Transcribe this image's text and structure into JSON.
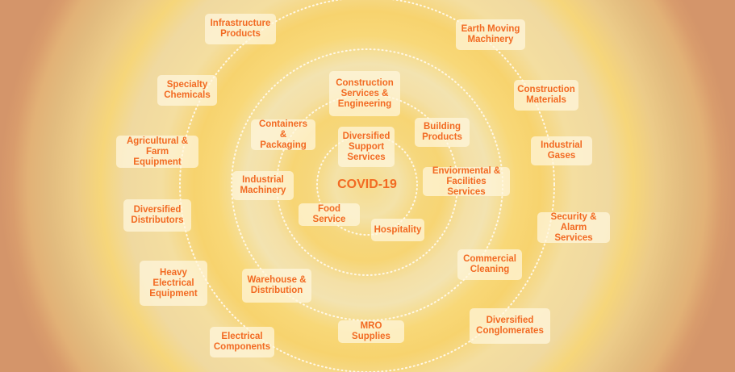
{
  "center_label": "COVID-19",
  "colors": {
    "text": "#f26a22",
    "background": "#d4976b",
    "ring_gold": "#f7d574",
    "ring_light": "#f4e2a8"
  },
  "nodes": [
    {
      "label": "Infrastructure\nProducts"
    },
    {
      "label": "Earth Moving\nMachinery"
    },
    {
      "label": "Specialty\nChemicals"
    },
    {
      "label": "Construction\nMaterials"
    },
    {
      "label": "Construction\nServices &\nEngineering"
    },
    {
      "label": "Containers &\nPackaging"
    },
    {
      "label": "Building\nProducts"
    },
    {
      "label": "Diversified\nSupport\nServices"
    },
    {
      "label": "Agricultural &\nFarm Equipment"
    },
    {
      "label": "Industrial\nGases"
    },
    {
      "label": "Enviormental &\nFacilities Services"
    },
    {
      "label": "Industrial\nMachinery"
    },
    {
      "label": "Diversified\nDistributors"
    },
    {
      "label": "Security &\nAlarm Services"
    },
    {
      "label": "Food Service"
    },
    {
      "label": "Hospitality"
    },
    {
      "label": "Commercial\nCleaning"
    },
    {
      "label": "Heavy\nElectrical\nEquipment"
    },
    {
      "label": "Warehouse &\nDistribution"
    },
    {
      "label": "Diversified\nConglomerates"
    },
    {
      "label": "MRO Supplies"
    },
    {
      "label": "Electrical\nComponents"
    }
  ]
}
